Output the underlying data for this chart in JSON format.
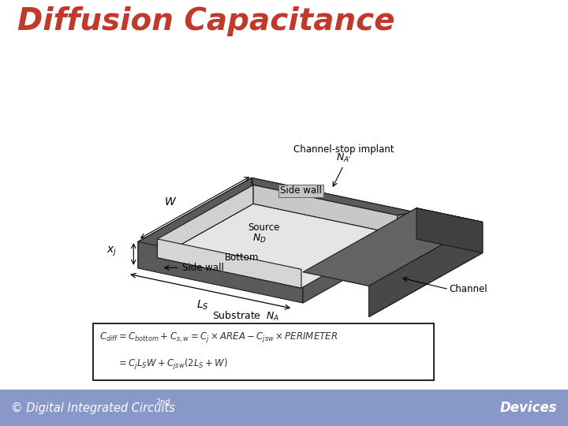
{
  "title": "Diffusion Capacitance",
  "title_color": "#C0392B",
  "title_fontsize": 28,
  "bg_color": "#FFFFFF",
  "footer_bg_top": "#c8d0e8",
  "footer_bg_bot": "#7080b0",
  "footer_text_left": "© Digital Integrated Circuits",
  "footer_text_left_sup": "2nd",
  "footer_text_right": "Devices",
  "label_channel_stop": "Channel-stop implant",
  "label_NA_prime": "$N_{A'}$",
  "label_sidewall_top": "Side wall",
  "label_source": "Source",
  "label_ND": "$N_D$",
  "label_bottom": "Bottom",
  "label_sidewall_bot": "Side wall",
  "label_W": "$W$",
  "label_xj": "$x_j$",
  "label_LS": "$L_S$",
  "label_channel": "Channel",
  "label_substrate": "Substrate  $N_A$"
}
